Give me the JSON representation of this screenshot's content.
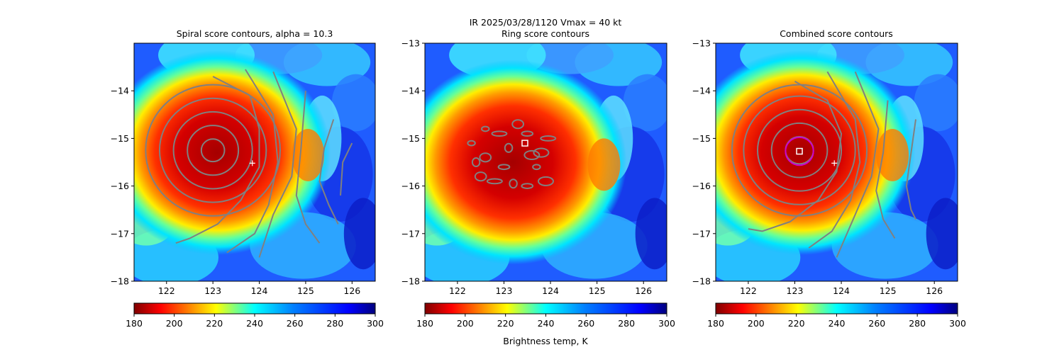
{
  "figure": {
    "suptitle": "IR  2025/03/28/1120    Vmax = 40 kt",
    "colorbar_label": "Brightness temp, K"
  },
  "colors": {
    "contour": "#808080",
    "marker_square": "#ffffff",
    "marker_circle": "#cc00cc",
    "center_plus": "#ffffff"
  },
  "chart_data": [
    {
      "type": "heatmap",
      "title": "Spiral score contours, alpha = 10.3",
      "xlim": [
        121.3,
        126.5
      ],
      "ylim": [
        -18,
        -13
      ],
      "xticks": [
        122,
        123,
        124,
        125,
        126
      ],
      "xtick_labels": [
        "122",
        "123",
        "124",
        "125",
        "126"
      ],
      "yticks": [
        -14,
        -15,
        -16,
        -17,
        -18
      ],
      "ytick_labels": [
        "−14",
        "−15",
        "−16",
        "−17",
        "−18"
      ],
      "colorbar": {
        "cmap": "jet_r",
        "vmin": 180,
        "vmax": 300,
        "ticks": [
          "180",
          "200",
          "220",
          "240",
          "260",
          "280",
          "300"
        ]
      },
      "contour_center": [
        123.0,
        -15.25
      ],
      "contour_rings": [
        0.25,
        0.55,
        0.85,
        1.15,
        1.45
      ],
      "outer_arcs": [
        [
          [
            123.0,
            -13.7
          ],
          [
            123.8,
            -14.1
          ],
          [
            124.0,
            -14.8
          ],
          [
            124.0,
            -15.6
          ],
          [
            123.6,
            -16.3
          ],
          [
            123.1,
            -16.8
          ],
          [
            122.5,
            -17.1
          ],
          [
            122.2,
            -17.2
          ]
        ],
        [
          [
            123.7,
            -13.55
          ],
          [
            124.3,
            -14.5
          ],
          [
            124.4,
            -15.5
          ],
          [
            124.2,
            -16.4
          ],
          [
            123.9,
            -17.0
          ],
          [
            123.3,
            -17.4
          ]
        ],
        [
          [
            124.3,
            -13.6
          ],
          [
            124.8,
            -14.8
          ],
          [
            124.7,
            -15.8
          ],
          [
            124.3,
            -16.6
          ],
          [
            124.0,
            -17.5
          ]
        ],
        [
          [
            125.0,
            -14.0
          ],
          [
            124.9,
            -15.2
          ],
          [
            124.8,
            -16.2
          ],
          [
            125.0,
            -16.8
          ],
          [
            125.3,
            -17.2
          ]
        ],
        [
          [
            125.6,
            -14.6
          ],
          [
            125.4,
            -15.2
          ],
          [
            125.3,
            -15.9
          ],
          [
            125.5,
            -16.4
          ],
          [
            125.7,
            -16.8
          ]
        ],
        [
          [
            126.0,
            -15.1
          ],
          [
            125.8,
            -15.5
          ],
          [
            125.75,
            -16.2
          ]
        ]
      ],
      "storm_center": [
        123.0,
        -15.3
      ],
      "plus_marker": [
        123.85,
        -15.52
      ]
    },
    {
      "type": "heatmap",
      "title": "Ring score contours",
      "xlim": [
        121.3,
        126.5
      ],
      "ylim": [
        -18,
        -13
      ],
      "xticks": [
        122,
        123,
        124,
        125,
        126
      ],
      "xtick_labels": [
        "122",
        "123",
        "124",
        "125",
        "126"
      ],
      "yticks": [
        -13,
        -14,
        -15,
        -16,
        -17,
        -18
      ],
      "ytick_labels": [
        "−13",
        "−14",
        "−15",
        "−16",
        "−17",
        "−18"
      ],
      "colorbar": {
        "cmap": "jet_r",
        "vmin": 180,
        "vmax": 300,
        "ticks": [
          "180",
          "200",
          "220",
          "240",
          "260",
          "280",
          "300"
        ]
      },
      "storm_center": [
        123.1,
        -15.5
      ],
      "square_marker": [
        123.45,
        -15.1
      ],
      "ring_blobs": [
        [
          122.3,
          -15.1
        ],
        [
          122.6,
          -15.4
        ],
        [
          122.9,
          -14.9
        ],
        [
          123.1,
          -15.2
        ],
        [
          123.5,
          -14.9
        ],
        [
          123.8,
          -15.3
        ],
        [
          123.7,
          -15.6
        ],
        [
          122.5,
          -15.8
        ],
        [
          122.8,
          -15.9
        ],
        [
          123.2,
          -15.95
        ],
        [
          123.5,
          -16.0
        ],
        [
          123.9,
          -15.9
        ],
        [
          122.6,
          -14.8
        ],
        [
          123.3,
          -14.7
        ],
        [
          123.95,
          -15.0
        ],
        [
          122.4,
          -15.5
        ],
        [
          123.0,
          -15.6
        ],
        [
          123.6,
          -15.35
        ]
      ]
    },
    {
      "type": "heatmap",
      "title": "Combined score contours",
      "xlim": [
        121.3,
        126.5
      ],
      "ylim": [
        -18,
        -13
      ],
      "xticks": [
        122,
        123,
        124,
        125,
        126
      ],
      "xtick_labels": [
        "122",
        "123",
        "124",
        "125",
        "126"
      ],
      "yticks": [
        -13,
        -14,
        -15,
        -16,
        -17,
        -18
      ],
      "ytick_labels": [
        "−13",
        "−14",
        "−15",
        "−16",
        "−17",
        "−18"
      ],
      "colorbar": {
        "cmap": "jet_r",
        "vmin": 180,
        "vmax": 300,
        "ticks": [
          "180",
          "200",
          "220",
          "240",
          "260",
          "280",
          "300"
        ]
      },
      "contour_center": [
        123.1,
        -15.25
      ],
      "contour_rings": [
        0.3,
        0.6,
        0.9,
        1.2,
        1.45
      ],
      "outer_arcs": [
        [
          [
            123.0,
            -13.8
          ],
          [
            123.7,
            -14.2
          ],
          [
            124.0,
            -14.9
          ],
          [
            123.9,
            -15.7
          ],
          [
            123.5,
            -16.3
          ],
          [
            122.9,
            -16.75
          ],
          [
            122.3,
            -16.95
          ],
          [
            122.0,
            -16.9
          ]
        ],
        [
          [
            123.7,
            -13.6
          ],
          [
            124.3,
            -14.6
          ],
          [
            124.4,
            -15.5
          ],
          [
            124.2,
            -16.3
          ],
          [
            123.8,
            -16.95
          ],
          [
            123.3,
            -17.3
          ]
        ],
        [
          [
            124.3,
            -13.6
          ],
          [
            124.8,
            -14.8
          ],
          [
            124.65,
            -15.8
          ],
          [
            124.3,
            -16.6
          ],
          [
            123.9,
            -17.5
          ]
        ],
        [
          [
            125.0,
            -14.2
          ],
          [
            124.9,
            -15.3
          ],
          [
            124.75,
            -16.1
          ],
          [
            124.9,
            -16.7
          ],
          [
            125.15,
            -17.1
          ]
        ],
        [
          [
            125.6,
            -14.6
          ],
          [
            125.5,
            -15.3
          ],
          [
            125.4,
            -16.0
          ],
          [
            125.5,
            -16.5
          ],
          [
            125.6,
            -16.7
          ]
        ]
      ],
      "storm_center": [
        123.05,
        -15.3
      ],
      "circle_marker": [
        123.1,
        -15.27
      ],
      "circle_radius": 0.3,
      "square_marker": [
        123.1,
        -15.27
      ],
      "plus_marker": [
        123.85,
        -15.52
      ]
    }
  ]
}
